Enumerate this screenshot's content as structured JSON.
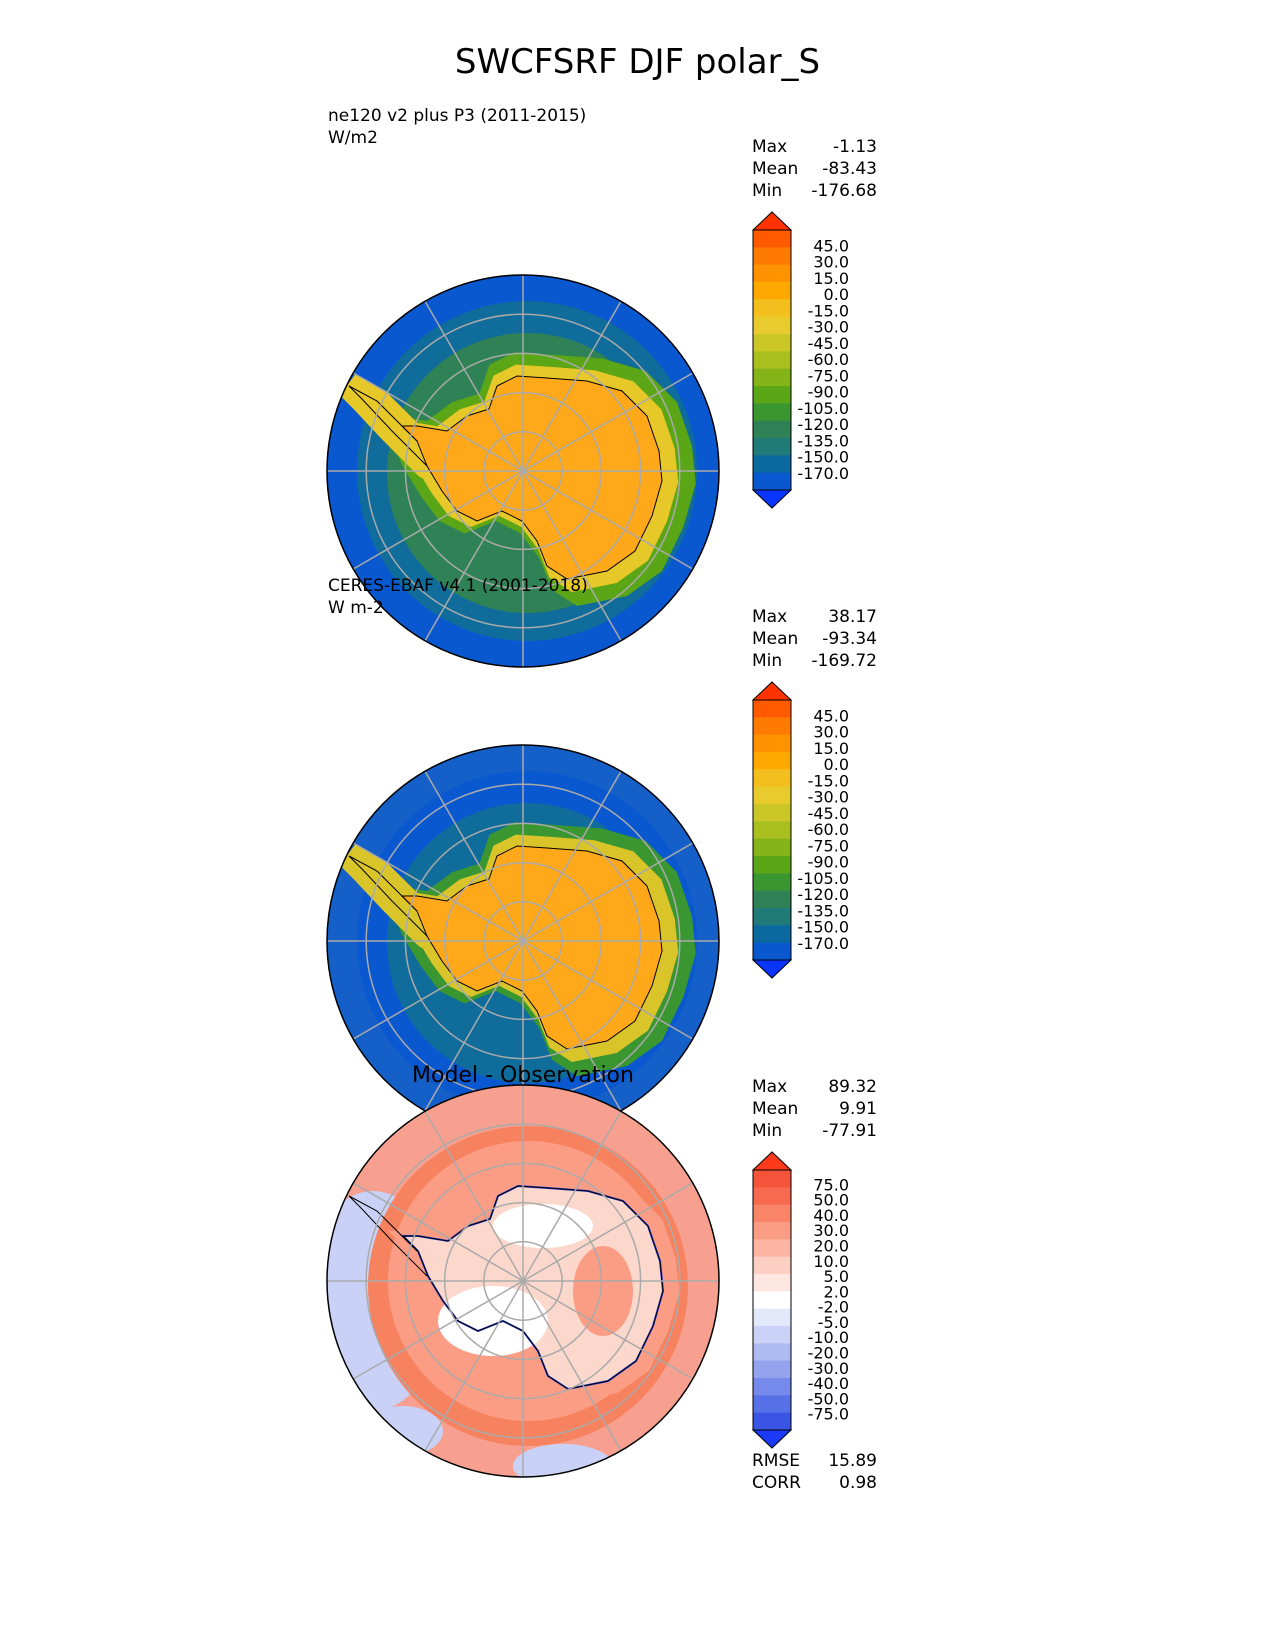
{
  "figure": {
    "title": "SWCFSRF DJF polar_S"
  },
  "panels": [
    {
      "id": "test",
      "title": "ne120 v2 plus P3 (2011-2015)",
      "units": "W/m2",
      "center_title": "",
      "stats": [
        {
          "label": "Max",
          "value": "-1.13"
        },
        {
          "label": "Mean",
          "value": "-83.43"
        },
        {
          "label": "Min",
          "value": "-176.68"
        }
      ],
      "colorbar": {
        "ticks": [
          "45.0",
          "30.0",
          "15.0",
          "0.0",
          "-15.0",
          "-30.0",
          "-45.0",
          "-60.0",
          "-75.0",
          "-90.0",
          "-105.0",
          "-120.0",
          "-135.0",
          "-150.0",
          "-170.0"
        ],
        "colors": [
          "#ff3300",
          "#ff5a00",
          "#ff7a00",
          "#ff9200",
          "#ffa800",
          "#f3bf1e",
          "#e9cb2e",
          "#cac727",
          "#a8bf1f",
          "#85b418",
          "#5aa616",
          "#3a9630",
          "#2f8255",
          "#207a78",
          "#0a6aa0",
          "#0a58d0",
          "#0a35ff"
        ],
        "extend": "both"
      },
      "map": {
        "field_colors": {
          "continent": "#ffa819",
          "coast_band": "#e6c828",
          "ring1": "#5aa616",
          "ring2": "#2f8255",
          "ring3": "#106c9a",
          "outer": "#0a58d0"
        },
        "grid": true
      }
    },
    {
      "id": "reference",
      "title": "CERES-EBAF v4.1 (2001-2018)",
      "units": "W m-2",
      "center_title": "",
      "stats": [
        {
          "label": "Max",
          "value": "38.17"
        },
        {
          "label": "Mean",
          "value": "-93.34"
        },
        {
          "label": "Min",
          "value": "-169.72"
        }
      ],
      "colorbar": {
        "ticks": [
          "45.0",
          "30.0",
          "15.0",
          "0.0",
          "-15.0",
          "-30.0",
          "-45.0",
          "-60.0",
          "-75.0",
          "-90.0",
          "-105.0",
          "-120.0",
          "-135.0",
          "-150.0",
          "-170.0"
        ],
        "colors": [
          "#ff3300",
          "#ff5a00",
          "#ff7a00",
          "#ff9200",
          "#ffa800",
          "#f3bf1e",
          "#e9cb2e",
          "#cac727",
          "#a8bf1f",
          "#85b418",
          "#5aa616",
          "#3a9630",
          "#2f8255",
          "#207a78",
          "#0a6aa0",
          "#0a58d0",
          "#0a35ff"
        ],
        "extend": "both"
      },
      "map": {
        "field_colors": {
          "continent": "#ffa819",
          "coast_band": "#d9c42a",
          "ring1": "#3a9630",
          "ring2": "#106c9a",
          "ring3": "#0a58d0",
          "outer": "#1560c8"
        },
        "grid": true
      }
    },
    {
      "id": "diff",
      "title": "",
      "units": "",
      "center_title": "Model - Observation",
      "stats": [
        {
          "label": "Max",
          "value": "89.32"
        },
        {
          "label": "Mean",
          "value": "9.91"
        },
        {
          "label": "Min",
          "value": "-77.91"
        }
      ],
      "extra_stats": [
        {
          "label": "RMSE",
          "value": "15.89"
        },
        {
          "label": "CORR",
          "value": "0.98"
        }
      ],
      "colorbar": {
        "ticks": [
          "75.0",
          "50.0",
          "40.0",
          "30.0",
          "20.0",
          "10.0",
          "5.0",
          "2.0",
          "-2.0",
          "-5.0",
          "-10.0",
          "-20.0",
          "-30.0",
          "-40.0",
          "-50.0",
          "-75.0"
        ],
        "colors": [
          "#ff3a1a",
          "#f5533a",
          "#f76a4f",
          "#fa8468",
          "#fb9d84",
          "#fcb5a2",
          "#fdcfc2",
          "#fde7e0",
          "#ffffff",
          "#e4e8fb",
          "#cbd2f7",
          "#afbbf3",
          "#93a3ee",
          "#758aea",
          "#5670e6",
          "#3a55e4",
          "#1a3af5"
        ],
        "extend": "both"
      },
      "map": {
        "field_colors": {
          "continent": "#ffffff",
          "interior": "#fcd8cc",
          "ring1": "#fb9d84",
          "ring2": "#f7825f",
          "ring3": "#fbb3a0",
          "outer": "#f8a090",
          "neg": "#c9d2f6"
        },
        "grid": true
      }
    }
  ]
}
